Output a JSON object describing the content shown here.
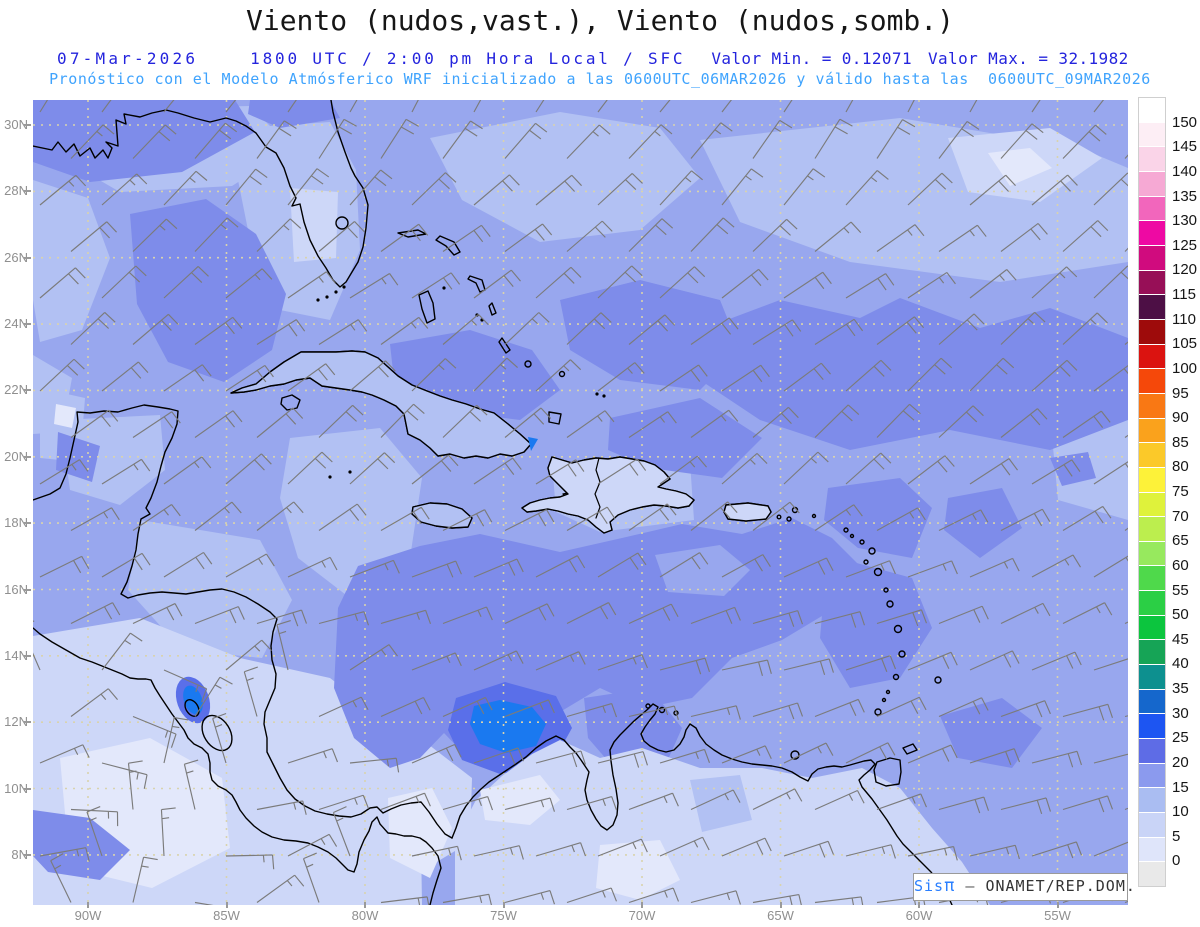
{
  "title": "Viento (nudos,vast.), Viento (nudos,somb.)",
  "header": {
    "date": "07-Mar-2026",
    "time_info": "1800 UTC / 2:00 pm Hora Local / SFC",
    "valor_min": "Valor Min. = 0.12071",
    "valor_max": "Valor Max. = 32.1982",
    "forecast_line": "Pronóstico con el Modelo Atmósferico WRF inicializado a las 0600UTC_06MAR2026 y válido hasta las  0600UTC_09MAR2026",
    "colors": {
      "line2": "#2424dd",
      "line3": "#3fa3fd"
    }
  },
  "map": {
    "lat_labels": [
      "30N",
      "28N",
      "26N",
      "24N",
      "22N",
      "20N",
      "18N",
      "16N",
      "14N",
      "12N",
      "10N",
      "8N"
    ],
    "lon_labels": [
      "90W",
      "85W",
      "80W",
      "75W",
      "70W",
      "65W",
      "60W",
      "55W"
    ],
    "grid_color": "#d9d3ad",
    "barbs": {
      "color": "#7b7b7b",
      "description": "barbas de viento grises, alisios del E/NE"
    },
    "palette": {
      "L0": "#e3e8fb",
      "L1": "#cdd7f8",
      "L2": "#b2c1f3",
      "L3": "#98a7ee",
      "L4": "#7e8cea",
      "ring": "#5a6fe9",
      "L5": "#1a79f0"
    },
    "coast_color": "#000000"
  },
  "colorbar": {
    "labels": [
      "150",
      "145",
      "140",
      "135",
      "130",
      "125",
      "120",
      "115",
      "110",
      "105",
      "100",
      "95",
      "90",
      "85",
      "80",
      "75",
      "70",
      "65",
      "60",
      "55",
      "50",
      "45",
      "40",
      "35",
      "30",
      "25",
      "20",
      "15",
      "10",
      "5",
      "0"
    ],
    "colors": [
      "#ffffff",
      "#fdeef5",
      "#fad4e8",
      "#f6a9d4",
      "#f266bc",
      "#ee09a3",
      "#d00b7e",
      "#970f57",
      "#4d0f45",
      "#9e0b0b",
      "#db1310",
      "#f5480a",
      "#f97814",
      "#faa21c",
      "#fbc929",
      "#fdf239",
      "#dff23b",
      "#bcee4e",
      "#97e95e",
      "#4fd94b",
      "#2bcf45",
      "#0cc53e",
      "#16a456",
      "#0d908f",
      "#1567cc",
      "#1d55f2",
      "#5e6ce6",
      "#8b9aee",
      "#aabdf2",
      "#c9d4f7",
      "#dfe5fa",
      "#e9e9e9"
    ]
  },
  "watermark": {
    "brand": "Sis",
    "pi": "π",
    "separator": "–",
    "org": "ONAMET/REP.DOM."
  },
  "chart_data": {
    "type": "heatmap",
    "title": "Viento (nudos,vast.), Viento (nudos,somb.)",
    "variable": "Viento",
    "units": "nudos",
    "level": "SFC",
    "valid_time": "07-Mar-2026 1800 UTC / 2:00 pm Hora Local",
    "valor_min": 0.12071,
    "valor_max": 32.1982,
    "model": "WRF",
    "init_run": "0600UTC_06MAR2026",
    "valid_until": "0600UTC_09MAR2026",
    "lat_ticks": [
      "30N",
      "28N",
      "26N",
      "24N",
      "22N",
      "20N",
      "18N",
      "16N",
      "14N",
      "12N",
      "10N",
      "8N"
    ],
    "lon_ticks": [
      "90W",
      "85W",
      "80W",
      "75W",
      "70W",
      "65W",
      "60W",
      "55W"
    ],
    "colorbar_levels_nudos": [
      0,
      5,
      10,
      15,
      20,
      25,
      30,
      35,
      40,
      45,
      50,
      55,
      60,
      65,
      70,
      75,
      80,
      85,
      90,
      95,
      100,
      105,
      110,
      115,
      120,
      125,
      130,
      135,
      140,
      145,
      150
    ],
    "shaded_features": [
      {
        "area": "Caribe central al sur de Hispaniola (13N-17N, 62W-78W)",
        "viento_nudos": "20-25"
      },
      {
        "area": "Costa norte de Colombia / Guajira (11N-12.5N, 73W-75.5W)",
        "viento_nudos": "25-32"
      },
      {
        "area": "Lago de Nicaragua (jet de Papagayo)",
        "viento_nudos": "25-30"
      },
      {
        "area": "Punta oriental de Cuba",
        "viento_nudos": "25-30"
      },
      {
        "area": "Atlántico central, Bahamas y Antillas Menores",
        "viento_nudos": "10-20"
      },
      {
        "area": "Golfo de México central",
        "viento_nudos": "20-25"
      },
      {
        "area": "Pacífico de Centroamérica (esquina suroeste)",
        "viento_nudos": "0-10"
      },
      {
        "area": "Interior de Colombia y Venezuela",
        "viento_nudos": "0-10"
      }
    ],
    "wind_barbs": "Vientos alisios del este-noreste de 10 a 25 nudos sobre toda la cuenca del Caribe"
  }
}
